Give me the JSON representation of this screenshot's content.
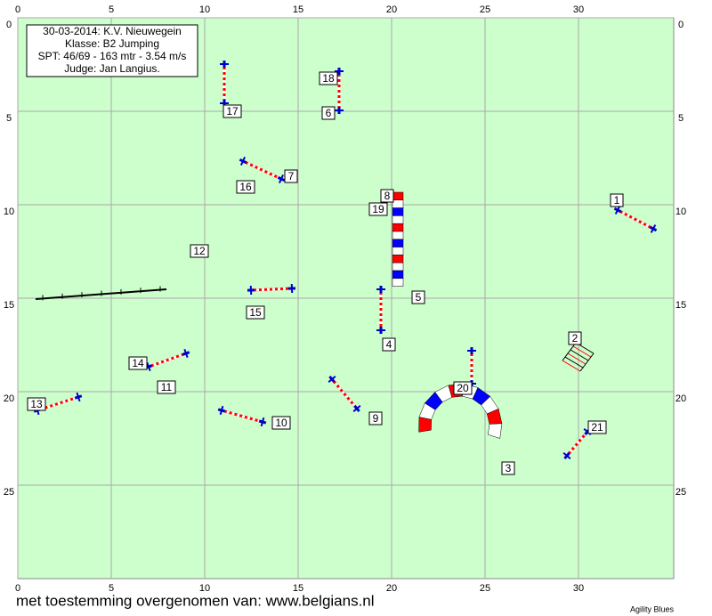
{
  "info": [
    "30-03-2014: K.V. Nieuwegein",
    "Klasse: B2 Jumping",
    "SPT: 46/69 - 163 mtr - 3.54 m/s",
    "Judge: Jan Langius."
  ],
  "x_ticks": [
    0,
    5,
    10,
    15,
    20,
    25,
    30
  ],
  "y_ticks": [
    0,
    5,
    10,
    15,
    20,
    25
  ],
  "obstacles": [
    "1",
    "2",
    "3",
    "4",
    "5",
    "6",
    "7",
    "8",
    "9",
    "10",
    "11",
    "12",
    "13",
    "14",
    "15",
    "16",
    "17",
    "18",
    "19",
    "20",
    "21"
  ],
  "credit": "met toestemming overgenomen van: www.belgians.nl",
  "brand": "Agility Blues"
}
